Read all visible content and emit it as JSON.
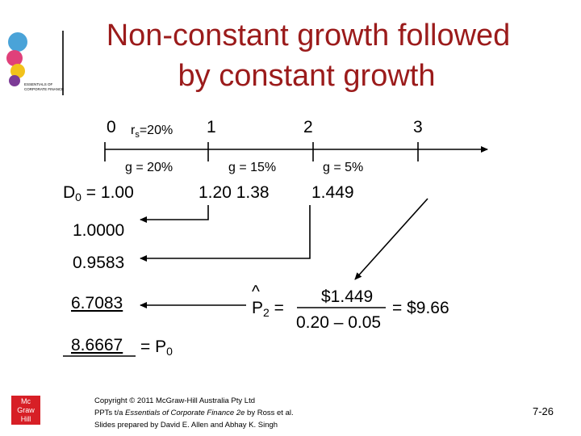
{
  "title": [
    "Non-constant growth followed",
    "by constant growth"
  ],
  "logo_top": [
    "ESSENTIALS OF",
    "CORPORATE FINANCE"
  ],
  "timeline": {
    "periods": [
      "0",
      "1",
      "2",
      "3"
    ],
    "rate": {
      "symbol": "r",
      "subscript": "s",
      "text": "=20%"
    },
    "growth": [
      "g = 20%",
      "g = 15%",
      "g = 5%"
    ]
  },
  "dividends": {
    "d0": {
      "symbol": "D",
      "subscript": "0",
      "text": " = 1.00"
    },
    "d1_d2": "1.20 1.38",
    "d3": "1.449"
  },
  "present_values": [
    "1.0000",
    "0.9583",
    "6.7083",
    "8.6667"
  ],
  "p0": {
    "text": "= P",
    "subscript": "0"
  },
  "formula": {
    "hat": "^",
    "symbol": "P",
    "subscript": "2",
    "equals": " =",
    "numerator": "$1.449",
    "denominator": "0.20 – 0.05",
    "result": "= $9.66"
  },
  "footer": {
    "line1": "Copyright © 2011 McGraw-Hill Australia Pty Ltd",
    "line2_a": "PPTs t/a ",
    "line2_b": "Essentials of Corporate Finance 2e",
    "line2_c": " by Ross et al.",
    "line3": "Slides prepared by David E. Allen and Abhay K. Singh"
  },
  "logo_bottom": [
    "Mc",
    "Graw",
    "Hill"
  ],
  "page_number": "7-26"
}
